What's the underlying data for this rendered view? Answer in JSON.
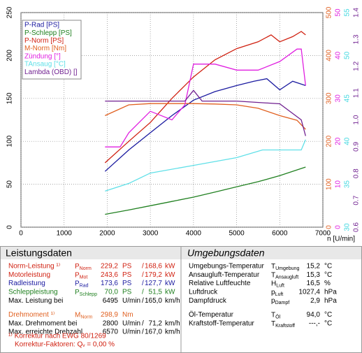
{
  "chart_data": {
    "type": "line",
    "x_label": "n [U/min]",
    "xlim": [
      0,
      7000
    ],
    "xticks": [
      0,
      1000,
      2000,
      3000,
      4000,
      5000,
      6000,
      7000
    ],
    "ylim": [
      0,
      250
    ],
    "yticks": [
      0,
      50,
      100,
      150,
      200,
      250
    ],
    "grid": true,
    "legend": "top-left",
    "right_axes": [
      {
        "color": "#e06020",
        "lim": [
          0,
          500
        ],
        "ticks": [
          0,
          100,
          200,
          300,
          400,
          500
        ]
      },
      {
        "color": "#e020e0",
        "lim": [
          0,
          50
        ],
        "ticks": [
          0,
          10,
          20,
          30,
          40,
          50
        ]
      },
      {
        "color": "#40d8e0",
        "lim": [
          30,
          55
        ],
        "ticks": [
          30,
          35,
          40,
          45,
          50,
          55
        ]
      },
      {
        "color": "#702090",
        "lim": [
          0.6,
          1.4
        ],
        "ticks": [
          0.6,
          0.7,
          0.8,
          0.9,
          {
            "value": 1,
            "label": "1.0"
          },
          1.1,
          1.2,
          1.3,
          1.4
        ]
      }
    ],
    "series": [
      {
        "name": "P-Rad [PS]",
        "color": "#1a1aa0",
        "x": [
          1950,
          2500,
          3000,
          3500,
          4000,
          4500,
          5000,
          5400,
          5700,
          6000,
          6300,
          6600
        ],
        "values": [
          65,
          90,
          110,
          130,
          148,
          158,
          165,
          170,
          173,
          160,
          170,
          165
        ]
      },
      {
        "name": "P-Schlepp [PS]",
        "color": "#208020",
        "x": [
          1950,
          2500,
          3000,
          3500,
          4000,
          4500,
          5000,
          5500,
          6000,
          6600
        ],
        "values": [
          15,
          20,
          25,
          30,
          35,
          41,
          47,
          53,
          60,
          70
        ]
      },
      {
        "name": "P-Norm [PS]",
        "color": "#d02010",
        "x": [
          1950,
          2500,
          3000,
          3500,
          4000,
          4500,
          5000,
          5500,
          5800,
          6000,
          6300,
          6500,
          6600
        ],
        "values": [
          75,
          100,
          122,
          150,
          175,
          195,
          208,
          216,
          224,
          216,
          222,
          228,
          224
        ]
      },
      {
        "name": "M-Norm [Nm]",
        "color": "#e06020",
        "axis": 0,
        "x": [
          1950,
          2500,
          3000,
          3500,
          4000,
          4500,
          5000,
          5500,
          6000,
          6400,
          6600
        ],
        "values": [
          260,
          285,
          288,
          288,
          288,
          287,
          285,
          277,
          260,
          249,
          228
        ]
      },
      {
        "name": "Zündung [°]",
        "color": "#e020e0",
        "axis": 1,
        "x": [
          1950,
          2300,
          2500,
          3000,
          3500,
          3800,
          4000,
          4500,
          5000,
          5500,
          6000,
          6400,
          6500,
          6600
        ],
        "values": [
          18.7,
          18.7,
          22,
          27,
          25,
          28.5,
          38,
          38,
          36.6,
          36.6,
          38.6,
          41.5,
          41.5,
          33
        ]
      },
      {
        "name": "TAnsaug [°C]",
        "color": "#60e0e8",
        "axis": 2,
        "x": [
          1950,
          2500,
          3000,
          4000,
          5000,
          5600,
          6500,
          6600
        ],
        "values": [
          34.2,
          35.1,
          36.3,
          37.2,
          38.1,
          39,
          39,
          40.2
        ]
      },
      {
        "name": "Lambda (OBD) []",
        "color": "#702090",
        "axis": 3,
        "x": [
          1950,
          3000,
          3800,
          4000,
          4200,
          5000,
          6000,
          6500,
          6600
        ],
        "values": [
          1.07,
          1.07,
          1.07,
          1.11,
          1.07,
          1.07,
          1.06,
          1,
          0.94
        ]
      }
    ]
  },
  "tables": {
    "left": {
      "title": "Leistungsdaten",
      "rows": [
        {
          "label": "Norm-Leistung ¹⁾",
          "symbol": {
            "main": "P",
            "sub": "Norm"
          },
          "value": "229,2",
          "unit": "PS",
          "sep": "/",
          "value2": "168,6",
          "unit2": "kW",
          "color": "#d02010"
        },
        {
          "label": "Motorleistung",
          "symbol": {
            "main": "P",
            "sub": "Mot"
          },
          "value": "243,6",
          "unit": "PS",
          "sep": "/",
          "value2": "179,2",
          "unit2": "kW",
          "color": "#d02010"
        },
        {
          "label": "Radleistung",
          "symbol": {
            "main": "P",
            "sub": "Rad"
          },
          "value": "173,6",
          "unit": "PS",
          "sep": "/",
          "value2": "127,7",
          "unit2": "kW",
          "color": "#1a1aa0"
        },
        {
          "label": "Schleppleistung",
          "symbol": {
            "main": "P",
            "sub": "Schlepp"
          },
          "value": "70,0",
          "unit": "PS",
          "sep": "/",
          "value2": "51,5",
          "unit2": "kW",
          "color": "#208020"
        },
        {
          "label": "Max. Leistung bei",
          "value": "6495",
          "unit": "U/min",
          "sep": "/",
          "value2": "165,0",
          "unit2": "km/h",
          "color": "#000000"
        },
        {
          "label": "Drehmoment ¹⁾",
          "symbol": {
            "main": "M",
            "sub": "Norm"
          },
          "value": "298,9",
          "unit": "Nm",
          "color": "#e06020"
        },
        {
          "label": "Max. Drehmoment bei",
          "value": "2800",
          "unit": "U/min",
          "sep": "/",
          "value2": "71,2",
          "unit2": "km/h",
          "color": "#000000"
        },
        {
          "label": "Max. erreichte Drehzahl",
          "value": "6570",
          "unit": "U/min",
          "sep": "/",
          "value2": "167,0",
          "unit2": "km/h",
          "color": "#000000"
        }
      ],
      "notes": [
        "¹⁾ Korrektur nach EWG 80/1269",
        "Korrektur-Faktoren: Qᵥ = 0,00 %"
      ]
    },
    "right": {
      "title": "Umgebungsdaten",
      "rows": [
        {
          "label": "Umgebungs-Temperatur",
          "symbol": {
            "main": "T",
            "sub": "Umgebung"
          },
          "value": "15,2",
          "unit": "°C"
        },
        {
          "label": "Ansaugluft-Temperatur",
          "symbol": {
            "main": "T",
            "sub": "Ansaugluft"
          },
          "value": "15,3",
          "unit": "°C"
        },
        {
          "label": "Relative Luftfeuchte",
          "symbol": {
            "main": "H",
            "sub": "Luft"
          },
          "value": "16,5",
          "unit": "%"
        },
        {
          "label": "Luftdruck",
          "symbol": {
            "main": "p",
            "sub": "Luft"
          },
          "value": "1027,4",
          "unit": "hPa"
        },
        {
          "label": "Dampfdruck",
          "symbol": {
            "main": "p",
            "sub": "Dampf"
          },
          "value": "2,9",
          "unit": "hPa"
        },
        {
          "label": "Öl-Temperatur",
          "symbol": {
            "main": "T",
            "sub": "Öl"
          },
          "value": "94,0",
          "unit": "°C"
        },
        {
          "label": "Kraftstoff-Temperatur",
          "symbol": {
            "main": "T",
            "sub": "Kraftstoff"
          },
          "value": "---,-",
          "unit": "°C"
        }
      ]
    }
  }
}
